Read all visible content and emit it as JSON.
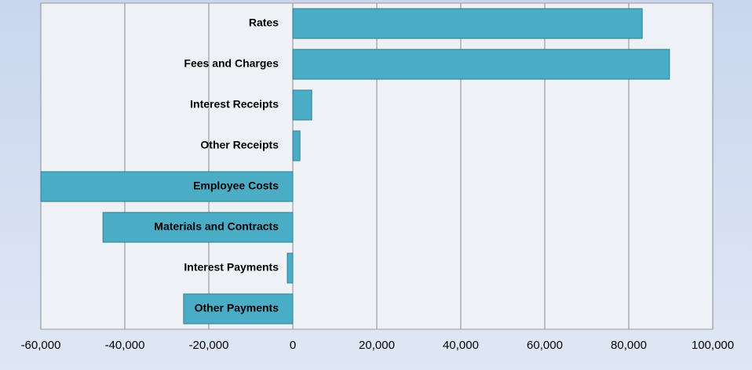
{
  "chart_data": {
    "type": "hbar",
    "categories": [
      "Rates",
      "Fees and Charges",
      "Interest Receipts",
      "Other Receipts",
      "Employee Costs",
      "Materials and Contracts",
      "Interest Payments",
      "Other Payments"
    ],
    "values": [
      83200,
      89700,
      4500,
      1700,
      -60000,
      -45200,
      -1300,
      -26000
    ],
    "color": "#4bacc6",
    "xlim": [
      -60000,
      100000
    ],
    "xticks": [
      {
        "value": -60000,
        "label": "-60,000"
      },
      {
        "value": -40000,
        "label": "-40,000"
      },
      {
        "value": -20000,
        "label": "-20,000"
      },
      0,
      {
        "value": 20000,
        "label": "20,000"
      },
      {
        "value": 40000,
        "label": "40,000"
      },
      {
        "value": 60000,
        "label": "60,000"
      },
      {
        "value": 80000,
        "label": "80,000"
      },
      {
        "value": 100000,
        "label": "100,000"
      }
    ],
    "grid": true
  }
}
